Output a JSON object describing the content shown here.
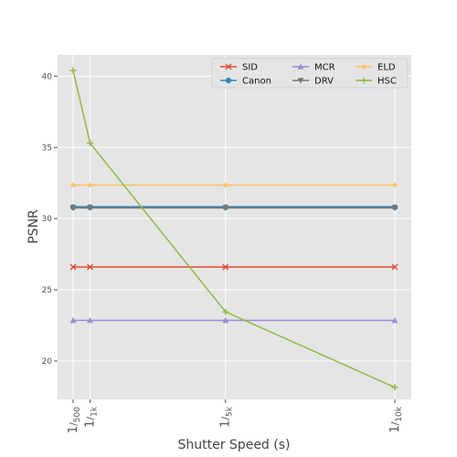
{
  "chart_data": {
    "type": "line",
    "xlabel": "Shutter Speed (s)",
    "ylabel": "PSNR",
    "x": [
      500,
      1000,
      5000,
      10000
    ],
    "x_tick_labels": [
      {
        "num": "1",
        "den": "500"
      },
      {
        "num": "1",
        "den": "1k"
      },
      {
        "num": "1",
        "den": "5k"
      },
      {
        "num": "1",
        "den": "10k"
      }
    ],
    "y_ticks": [
      20,
      25,
      30,
      35,
      40
    ],
    "ylim": [
      17.3,
      41.5
    ],
    "grid": true,
    "legend_position": "top-right",
    "series": [
      {
        "name": "SID",
        "values": [
          26.6,
          26.6,
          26.6,
          26.6
        ],
        "color": "#e24a33",
        "marker": "x"
      },
      {
        "name": "Canon",
        "values": [
          30.8,
          30.8,
          30.8,
          30.8
        ],
        "color": "#348abd",
        "marker": "circle"
      },
      {
        "name": "MCR",
        "values": [
          22.85,
          22.85,
          22.85,
          22.85
        ],
        "color": "#988ed5",
        "marker": "triangle-up"
      },
      {
        "name": "DRV",
        "values": [
          30.75,
          30.75,
          30.75,
          30.75
        ],
        "color": "#777777",
        "marker": "triangle-down"
      },
      {
        "name": "ELD",
        "values": [
          32.35,
          32.35,
          32.35,
          32.35
        ],
        "color": "#fbc15e",
        "marker": "star"
      },
      {
        "name": "HSC",
        "values": [
          40.4,
          35.3,
          23.45,
          18.15
        ],
        "color": "#8eba42",
        "marker": "plus"
      }
    ]
  }
}
